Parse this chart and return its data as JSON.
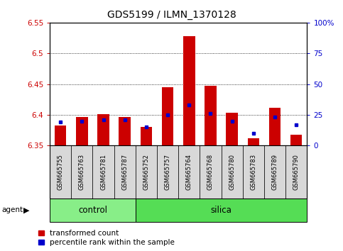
{
  "title": "GDS5199 / ILMN_1370128",
  "samples": [
    "GSM665755",
    "GSM665763",
    "GSM665781",
    "GSM665787",
    "GSM665752",
    "GSM665757",
    "GSM665764",
    "GSM665768",
    "GSM665780",
    "GSM665783",
    "GSM665789",
    "GSM665790"
  ],
  "groups": [
    "control",
    "control",
    "control",
    "control",
    "silica",
    "silica",
    "silica",
    "silica",
    "silica",
    "silica",
    "silica",
    "silica"
  ],
  "transformed_count": [
    6.383,
    6.397,
    6.401,
    6.397,
    6.38,
    6.445,
    6.528,
    6.447,
    6.403,
    6.362,
    6.411,
    6.368
  ],
  "percentile_rank": [
    19,
    20,
    21,
    21,
    15,
    25,
    33,
    26,
    20,
    10,
    23,
    17
  ],
  "ylim_left": [
    6.35,
    6.55
  ],
  "ylim_right": [
    0,
    100
  ],
  "yticks_left": [
    6.35,
    6.4,
    6.45,
    6.5,
    6.55
  ],
  "ytick_labels_left": [
    "6.35",
    "6.4",
    "6.45",
    "6.5",
    "6.55"
  ],
  "yticks_right": [
    0,
    25,
    50,
    75,
    100
  ],
  "ytick_labels_right": [
    "0",
    "25",
    "50",
    "75",
    "100%"
  ],
  "bar_color": "#cc0000",
  "dot_color": "#0000cc",
  "bar_baseline": 6.35,
  "control_color": "#88ee88",
  "silica_color": "#55dd55",
  "title_fontsize": 10,
  "legend_fontsize": 7.5,
  "agent_label": "agent",
  "group_control": "control",
  "group_silica": "silica",
  "background_color": "#ffffff",
  "axis_label_color_left": "#cc0000",
  "axis_label_color_right": "#0000cc",
  "sample_box_color": "#d8d8d8",
  "n_control": 4,
  "n_silica": 8
}
